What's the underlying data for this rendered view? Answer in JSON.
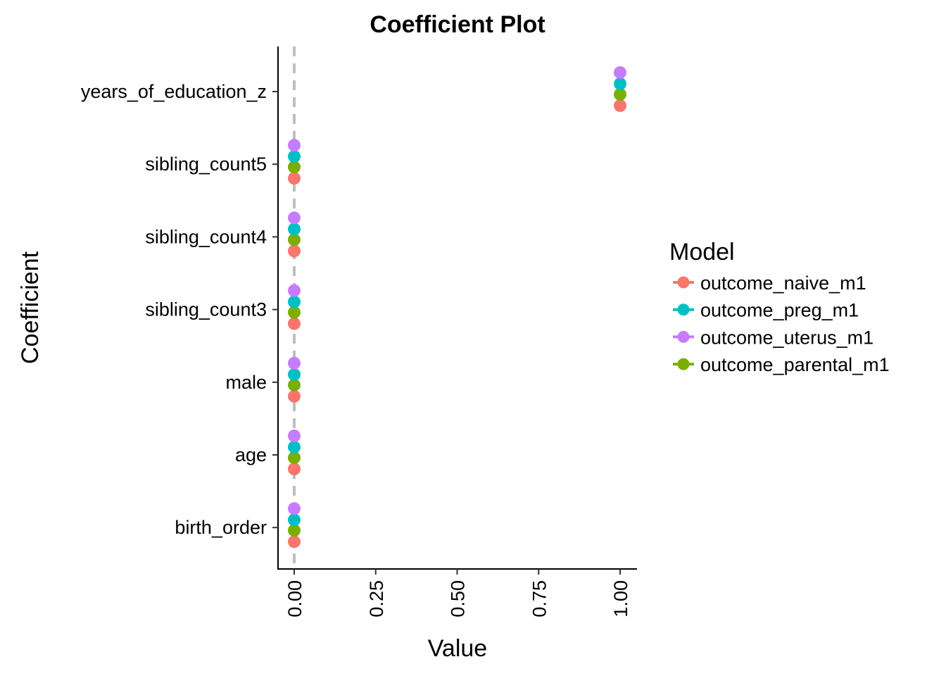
{
  "chart_data": {
    "type": "scatter",
    "title": "Coefficient Plot",
    "xlabel": "Value",
    "ylabel": "Coefficient",
    "xlim": [
      -0.05,
      1.05
    ],
    "x_ticks": [
      "0.00",
      "0.25",
      "0.50",
      "0.75",
      "1.00"
    ],
    "x_tick_values": [
      0,
      0.25,
      0.5,
      0.75,
      1.0
    ],
    "categories": [
      "years_of_education_z",
      "sibling_count5",
      "sibling_count4",
      "sibling_count3",
      "male",
      "age",
      "birth_order"
    ],
    "reference_line": {
      "x": 0,
      "style": "dashed",
      "color": "#bebebe"
    },
    "grid": false,
    "legend": {
      "title": "Model",
      "position": "right"
    },
    "series": [
      {
        "name": "outcome_naive_m1",
        "color": "#F8766D",
        "values": [
          1.0,
          0,
          0,
          0,
          0,
          0,
          0
        ]
      },
      {
        "name": "outcome_preg_m1",
        "color": "#00BFC4",
        "values": [
          1.0,
          0,
          0,
          0,
          0,
          0,
          0
        ]
      },
      {
        "name": "outcome_uterus_m1",
        "color": "#C77CFF",
        "values": [
          1.0,
          0,
          0,
          0,
          0,
          0,
          0
        ]
      },
      {
        "name": "outcome_parental_m1",
        "color": "#7CAE00",
        "values": [
          1.0,
          0,
          0,
          0,
          0,
          0,
          0
        ]
      }
    ]
  }
}
